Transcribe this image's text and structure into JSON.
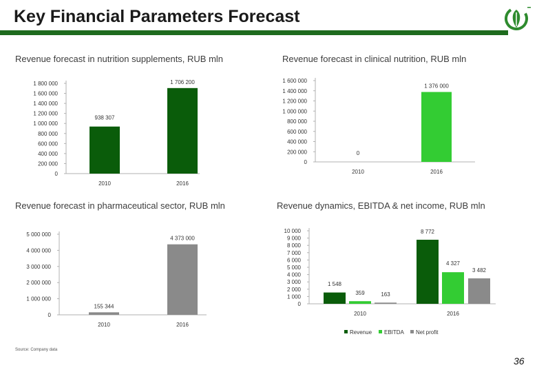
{
  "page": {
    "title": "Key Financial Parameters Forecast",
    "source": "Source: Company data",
    "page_number": "36"
  },
  "chart_data": [
    {
      "type": "bar",
      "title": "Revenue forecast in nutrition supplements, RUB mln",
      "categories": [
        "2010",
        "2016"
      ],
      "values": [
        938307,
        1706200
      ],
      "labels": [
        "938 307",
        "1 706 200"
      ],
      "colors": [
        "#0a5c0a",
        "#0a5c0a"
      ],
      "ylim": [
        0,
        1800000
      ],
      "yticks": [
        0,
        200000,
        400000,
        600000,
        800000,
        1000000,
        1200000,
        1400000,
        1600000,
        1800000
      ],
      "ytick_labels": [
        "0",
        "200 000",
        "400 000",
        "600 000",
        "800 000",
        "1 000 000",
        "1 200 000",
        "1 400 000",
        "1 600 000",
        "1 800 000"
      ]
    },
    {
      "type": "bar",
      "title": "Revenue forecast in clinical nutrition, RUB mln",
      "categories": [
        "2010",
        "2016"
      ],
      "values": [
        0,
        1376000
      ],
      "labels": [
        "0",
        "1 376 000"
      ],
      "colors": [
        "#33cc33",
        "#33cc33"
      ],
      "ylim": [
        0,
        1600000
      ],
      "yticks": [
        0,
        200000,
        400000,
        600000,
        800000,
        1000000,
        1200000,
        1400000,
        1600000
      ],
      "ytick_labels": [
        "0",
        "200 000",
        "400 000",
        "600 000",
        "800 000",
        "1 000 000",
        "1 200 000",
        "1 400 000",
        "1 600 000"
      ]
    },
    {
      "type": "bar",
      "title": "Revenue forecast in pharmaceutical sector, RUB mln",
      "categories": [
        "2010",
        "2016"
      ],
      "values": [
        155344,
        4373000
      ],
      "labels": [
        "155 344",
        "4 373 000"
      ],
      "colors": [
        "#8a8a8a",
        "#8a8a8a"
      ],
      "ylim": [
        0,
        5000000
      ],
      "yticks": [
        0,
        1000000,
        2000000,
        3000000,
        4000000,
        5000000
      ],
      "ytick_labels": [
        "0",
        "1 000 000",
        "2 000 000",
        "3 000 000",
        "4 000 000",
        "5 000 000"
      ]
    },
    {
      "type": "bar",
      "title": "Revenue dynamics, EBITDA & net income, RUB mln",
      "categories": [
        "2010",
        "2016"
      ],
      "series": [
        {
          "name": "Revenue",
          "color": "#0a5c0a",
          "values": [
            1548,
            8772
          ],
          "labels": [
            "1 548",
            "8 772"
          ]
        },
        {
          "name": "EBITDA",
          "color": "#33cc33",
          "values": [
            359,
            4327
          ],
          "labels": [
            "359",
            "4 327"
          ]
        },
        {
          "name": "Net profit",
          "color": "#8a8a8a",
          "values": [
            163,
            3482
          ],
          "labels": [
            "163",
            "3 482"
          ]
        }
      ],
      "ylim": [
        0,
        10000
      ],
      "yticks": [
        0,
        1000,
        2000,
        3000,
        4000,
        5000,
        6000,
        7000,
        8000,
        9000,
        10000
      ],
      "ytick_labels": [
        "0",
        "1 000",
        "2 000",
        "3 000",
        "4 000",
        "5 000",
        "6 000",
        "7 000",
        "8 000",
        "9 000",
        "10 000"
      ],
      "legend_position": "bottom"
    }
  ]
}
